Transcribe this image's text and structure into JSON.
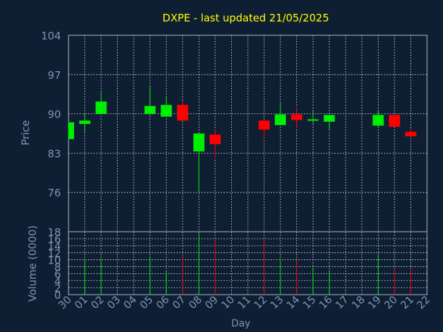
{
  "colors": {
    "background": "#0f1f33",
    "grid": "#ffffff",
    "text": "#7f95b3",
    "title": "#ffff00",
    "up": "#00ee00",
    "down": "#ff0000",
    "axis": "#b0b8c8"
  },
  "chart_data": [
    {
      "type": "candlestick",
      "title": "DXPE - last updated 21/05/2025",
      "ylabel": "Price",
      "ylim": [
        69,
        104
      ],
      "yticks": [
        76,
        83,
        90,
        97,
        104
      ],
      "grid": true,
      "categories": [
        "30",
        "01",
        "02",
        "03",
        "04",
        "05",
        "06",
        "07",
        "08",
        "09",
        "10",
        "11",
        "12",
        "13",
        "14",
        "15",
        "16",
        "17",
        "18",
        "19",
        "20",
        "21",
        "22"
      ],
      "candles": [
        {
          "day": "30",
          "open": 85.5,
          "close": 88.5,
          "high": 88.5,
          "low": 85.5
        },
        {
          "day": "01",
          "open": 88.2,
          "close": 88.8,
          "high": 90.0,
          "low": 86.8
        },
        {
          "day": "02",
          "open": 90.0,
          "close": 92.2,
          "high": 93.8,
          "low": 90.0
        },
        {
          "day": "05",
          "open": 90.0,
          "close": 91.4,
          "high": 94.8,
          "low": 89.8
        },
        {
          "day": "06",
          "open": 89.5,
          "close": 91.6,
          "high": 93.2,
          "low": 89.5
        },
        {
          "day": "07",
          "open": 91.6,
          "close": 88.8,
          "high": 92.4,
          "low": 88.8
        },
        {
          "day": "08",
          "open": 83.3,
          "close": 86.5,
          "high": 86.5,
          "low": 76.2
        },
        {
          "day": "09",
          "open": 86.3,
          "close": 84.6,
          "high": 87.2,
          "low": 82.0
        },
        {
          "day": "12",
          "open": 88.8,
          "close": 87.2,
          "high": 89.0,
          "low": 85.5
        },
        {
          "day": "13",
          "open": 88.0,
          "close": 89.9,
          "high": 92.0,
          "low": 88.0
        },
        {
          "day": "14",
          "open": 89.9,
          "close": 88.9,
          "high": 91.2,
          "low": 87.5
        },
        {
          "day": "15",
          "open": 88.7,
          "close": 88.9,
          "high": 90.6,
          "low": 88.3
        },
        {
          "day": "16",
          "open": 88.6,
          "close": 89.8,
          "high": 89.8,
          "low": 87.2
        },
        {
          "day": "19",
          "open": 87.9,
          "close": 89.8,
          "high": 90.6,
          "low": 87.6
        },
        {
          "day": "20",
          "open": 89.8,
          "close": 87.7,
          "high": 89.8,
          "low": 87.7
        },
        {
          "day": "21",
          "open": 86.8,
          "close": 86.0,
          "high": 87.5,
          "low": 85.7
        }
      ]
    },
    {
      "type": "bar",
      "ylabel": "Volume (0000)",
      "xlabel": "Day",
      "ylim": [
        0,
        18
      ],
      "yticks": [
        0,
        2,
        4,
        6,
        8,
        10,
        12,
        14,
        16,
        18
      ],
      "grid": true,
      "volumes": [
        {
          "day": "01",
          "value": 10,
          "direction": "up"
        },
        {
          "day": "02",
          "value": 10.2,
          "direction": "up"
        },
        {
          "day": "05",
          "value": 10.8,
          "direction": "up"
        },
        {
          "day": "06",
          "value": 6.5,
          "direction": "up"
        },
        {
          "day": "07",
          "value": 11.5,
          "direction": "down"
        },
        {
          "day": "08",
          "value": 17.5,
          "direction": "up"
        },
        {
          "day": "09",
          "value": 15.5,
          "direction": "down"
        },
        {
          "day": "12",
          "value": 15.5,
          "direction": "down"
        },
        {
          "day": "13",
          "value": 10.2,
          "direction": "up"
        },
        {
          "day": "14",
          "value": 9.8,
          "direction": "down"
        },
        {
          "day": "15",
          "value": 7.5,
          "direction": "up"
        },
        {
          "day": "16",
          "value": 7.0,
          "direction": "up"
        },
        {
          "day": "19",
          "value": 11.2,
          "direction": "up"
        },
        {
          "day": "20",
          "value": 7.5,
          "direction": "down"
        },
        {
          "day": "21",
          "value": 7.5,
          "direction": "down"
        }
      ]
    }
  ]
}
